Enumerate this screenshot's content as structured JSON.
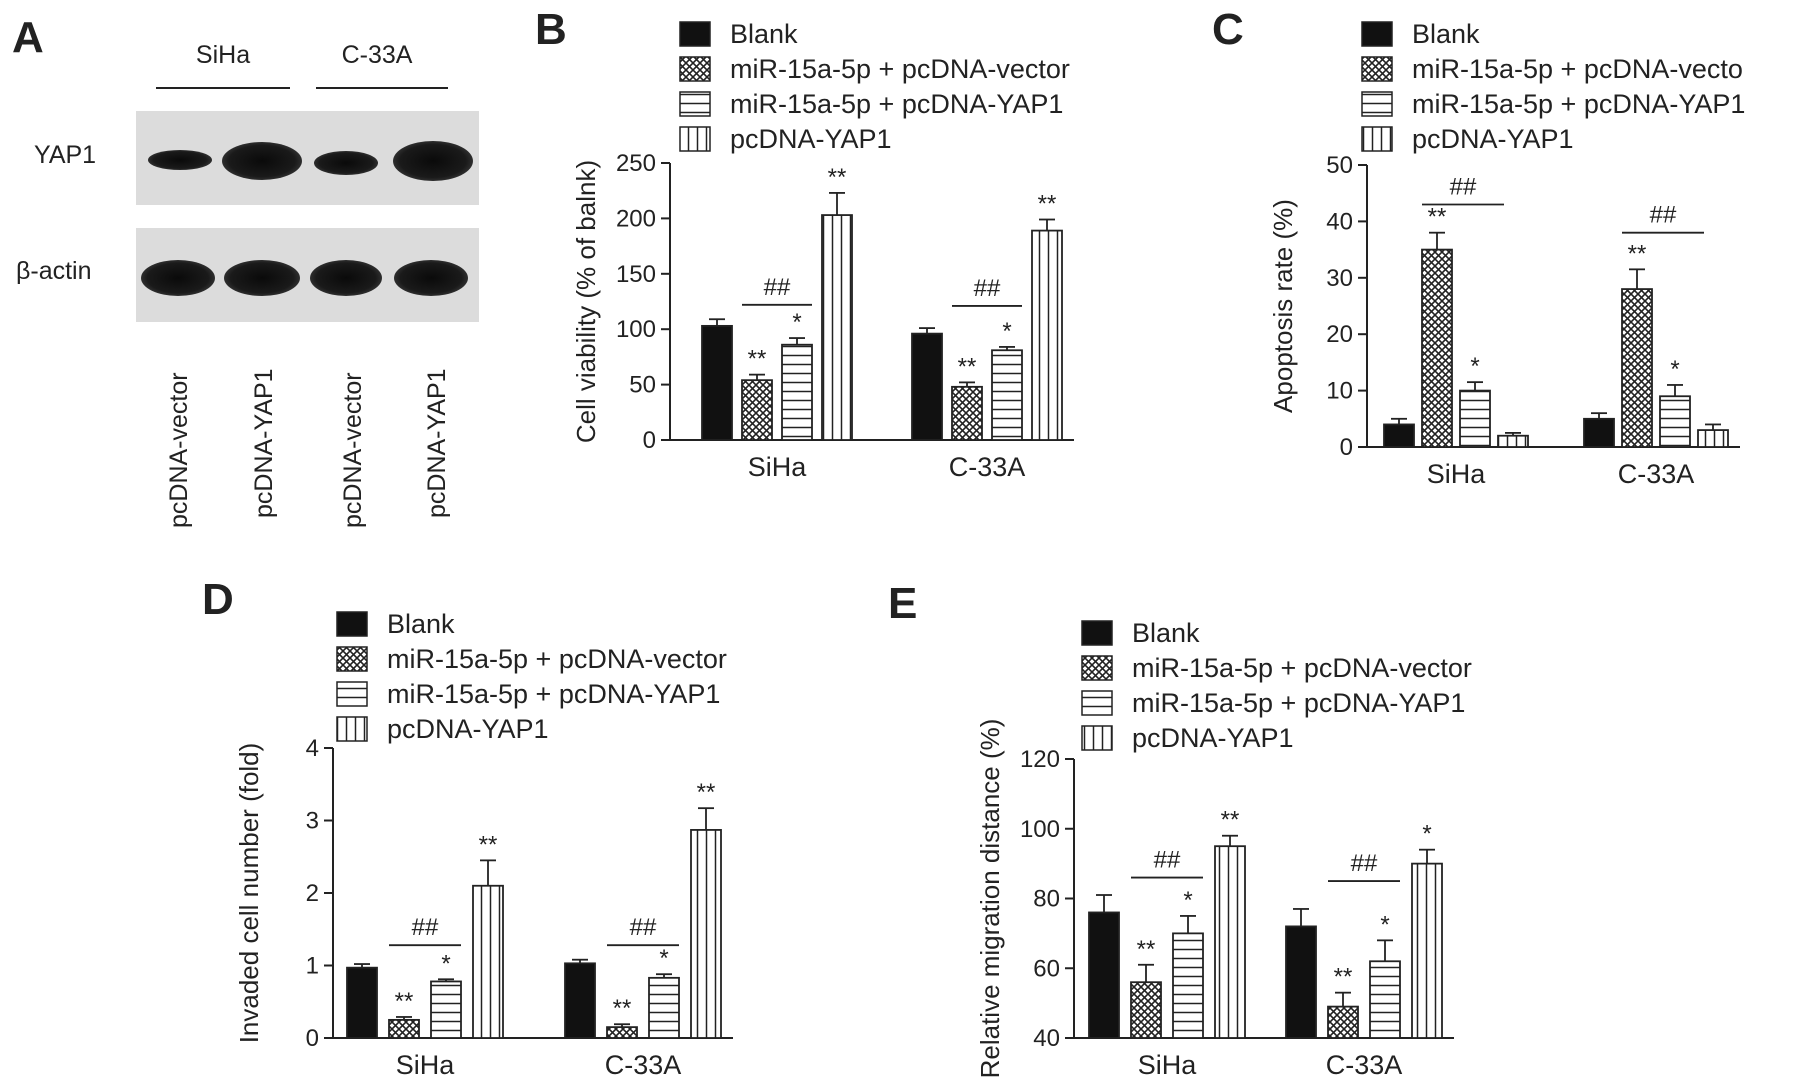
{
  "panels": {
    "A": {
      "letter": "A",
      "cell_lines": [
        "SiHa",
        "C-33A"
      ],
      "bands": [
        "YAP1",
        "β-actin"
      ],
      "lanes": [
        "pcDNA-vector",
        "pcDNA-YAP1",
        "pcDNA-vector",
        "pcDNA-YAP1"
      ]
    }
  },
  "legend": [
    "Blank",
    "miR-15a-5p + pcDNA-vector",
    "miR-15a-5p + pcDNA-YAP1",
    "pcDNA-YAP1"
  ],
  "colors": {
    "ink": "#222222",
    "blank_fill": "#111111",
    "hatch_bg": "#ffffff"
  },
  "chart_data": [
    {
      "panel": "B",
      "type": "bar",
      "ylabel": "Cell viability (% of balnk)",
      "ylim": [
        0,
        250
      ],
      "yticks": [
        0,
        50,
        100,
        150,
        200,
        250
      ],
      "categories": [
        "SiHa",
        "C-33A"
      ],
      "legend_labels": [
        "Blank",
        "miR-15a-5p + pcDNA-vector",
        "miR-15a-5p + pcDNA-YAP1",
        "pcDNA-YAP1"
      ],
      "series": [
        {
          "name": "Blank",
          "values": [
            103,
            96
          ],
          "errors": [
            6,
            5
          ],
          "sig": [
            "",
            ""
          ]
        },
        {
          "name": "miR-15a-5p + pcDNA-vector",
          "values": [
            54,
            48
          ],
          "errors": [
            5,
            4
          ],
          "sig": [
            "**",
            "**"
          ]
        },
        {
          "name": "miR-15a-5p + pcDNA-YAP1",
          "values": [
            86,
            81
          ],
          "errors": [
            6,
            3
          ],
          "sig": [
            "*",
            "*"
          ]
        },
        {
          "name": "pcDNA-YAP1",
          "values": [
            203,
            189
          ],
          "errors": [
            20,
            10
          ],
          "sig": [
            "**",
            "**"
          ]
        }
      ],
      "brackets": [
        {
          "category": 0,
          "from": 1,
          "to": 2,
          "y": 122,
          "label": "##"
        },
        {
          "category": 1,
          "from": 1,
          "to": 2,
          "y": 121,
          "label": "##"
        }
      ]
    },
    {
      "panel": "C",
      "type": "bar",
      "ylabel": "Apoptosis rate (%)",
      "ylim": [
        0,
        50
      ],
      "yticks": [
        0,
        10,
        20,
        30,
        40,
        50
      ],
      "categories": [
        "SiHa",
        "C-33A"
      ],
      "legend_labels": [
        "Blank",
        "miR-15a-5p + pcDNA-vecto",
        "miR-15a-5p + pcDNA-YAP1",
        "pcDNA-YAP1"
      ],
      "series": [
        {
          "name": "Blank",
          "values": [
            4,
            5
          ],
          "errors": [
            1,
            1
          ],
          "sig": [
            "",
            ""
          ]
        },
        {
          "name": "miR-15a-5p + pcDNA-vector",
          "values": [
            35,
            28
          ],
          "errors": [
            3,
            3.5
          ],
          "sig": [
            "**",
            "**"
          ]
        },
        {
          "name": "miR-15a-5p + pcDNA-YAP1",
          "values": [
            10,
            9
          ],
          "errors": [
            1.5,
            2
          ],
          "sig": [
            "*",
            "*"
          ]
        },
        {
          "name": "pcDNA-YAP1",
          "values": [
            2,
            3
          ],
          "errors": [
            0.5,
            1
          ],
          "sig": [
            "",
            ""
          ]
        }
      ],
      "brackets": [
        {
          "category": 0,
          "from": 1,
          "to": 3,
          "y": 43,
          "label": "##"
        },
        {
          "category": 1,
          "from": 1,
          "to": 3,
          "y": 38,
          "label": "##"
        }
      ]
    },
    {
      "panel": "D",
      "type": "bar",
      "ylabel": "Invaded cell number (fold)",
      "ylim": [
        0,
        4
      ],
      "yticks": [
        0,
        1,
        2,
        3,
        4
      ],
      "categories": [
        "SiHa",
        "C-33A"
      ],
      "legend_labels": [
        "Blank",
        "miR-15a-5p + pcDNA-vector",
        "miR-15a-5p + pcDNA-YAP1",
        "pcDNA-YAP1"
      ],
      "series": [
        {
          "name": "Blank",
          "values": [
            0.97,
            1.03
          ],
          "errors": [
            0.05,
            0.05
          ],
          "sig": [
            "",
            ""
          ]
        },
        {
          "name": "miR-15a-5p + pcDNA-vector",
          "values": [
            0.25,
            0.15
          ],
          "errors": [
            0.04,
            0.04
          ],
          "sig": [
            "**",
            "**"
          ]
        },
        {
          "name": "miR-15a-5p + pcDNA-YAP1",
          "values": [
            0.78,
            0.83
          ],
          "errors": [
            0.03,
            0.05
          ],
          "sig": [
            "*",
            "*"
          ]
        },
        {
          "name": "pcDNA-YAP1",
          "values": [
            2.1,
            2.87
          ],
          "errors": [
            0.35,
            0.3
          ],
          "sig": [
            "**",
            "**"
          ]
        }
      ],
      "brackets": [
        {
          "category": 0,
          "from": 1,
          "to": 2,
          "y": 1.28,
          "label": "##"
        },
        {
          "category": 1,
          "from": 1,
          "to": 2,
          "y": 1.28,
          "label": "##"
        }
      ]
    },
    {
      "panel": "E",
      "type": "bar",
      "ylabel": "Relative migration distance (%)",
      "ylim": [
        40,
        120
      ],
      "yticks": [
        40,
        60,
        80,
        100,
        120
      ],
      "categories": [
        "SiHa",
        "C-33A"
      ],
      "legend_labels": [
        "Blank",
        "miR-15a-5p + pcDNA-vector",
        "miR-15a-5p + pcDNA-YAP1",
        "pcDNA-YAP1"
      ],
      "series": [
        {
          "name": "Blank",
          "values": [
            76,
            72
          ],
          "errors": [
            5,
            5
          ],
          "sig": [
            "",
            ""
          ]
        },
        {
          "name": "miR-15a-5p + pcDNA-vector",
          "values": [
            56,
            49
          ],
          "errors": [
            5,
            4
          ],
          "sig": [
            "**",
            "**"
          ]
        },
        {
          "name": "miR-15a-5p + pcDNA-YAP1",
          "values": [
            70,
            62
          ],
          "errors": [
            5,
            6
          ],
          "sig": [
            "*",
            "*"
          ]
        },
        {
          "name": "pcDNA-YAP1",
          "values": [
            95,
            90
          ],
          "errors": [
            3,
            4
          ],
          "sig": [
            "**",
            "*"
          ]
        }
      ],
      "brackets": [
        {
          "category": 0,
          "from": 1,
          "to": 2,
          "y": 86,
          "label": "##"
        },
        {
          "category": 1,
          "from": 1,
          "to": 2,
          "y": 85,
          "label": "##"
        }
      ]
    }
  ]
}
